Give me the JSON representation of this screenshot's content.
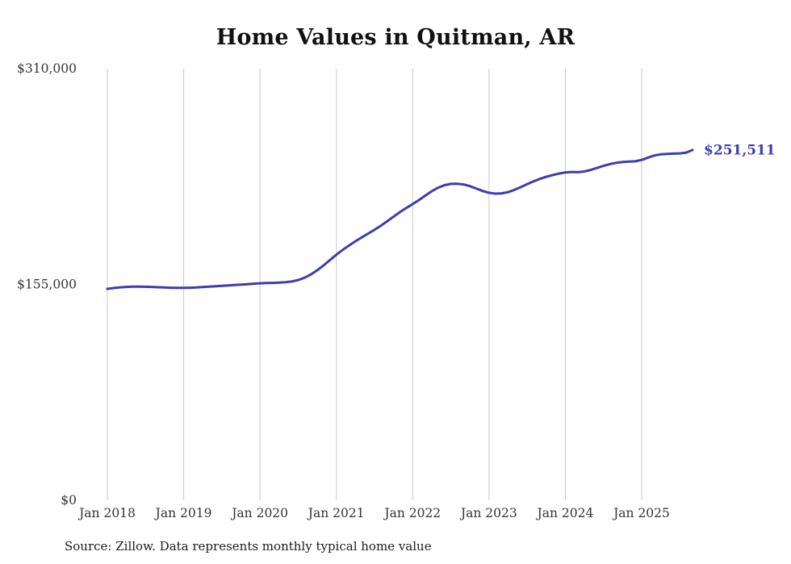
{
  "title": "Home Values in Quitman, AR",
  "source_note": "Source: Zillow. Data represents monthly typical home value",
  "colors": {
    "line": "#3e3daf",
    "grid": "#c8c8c8",
    "tick_text": "#333333",
    "title_text": "#111111"
  },
  "chart_data": {
    "type": "line",
    "title": "Home Values in Quitman, AR",
    "xlabel": "",
    "ylabel": "",
    "ylim": [
      0,
      310000
    ],
    "grid": "vertical-only",
    "legend": "none",
    "end_label": "$251,511",
    "latest_value": 251511,
    "y_ticks": [
      {
        "value": 0,
        "label": "$0"
      },
      {
        "value": 155000,
        "label": "$155,000"
      },
      {
        "value": 310000,
        "label": "$310,000"
      }
    ],
    "x_ticks": [
      "Jan 2018",
      "Jan 2019",
      "Jan 2020",
      "Jan 2021",
      "Jan 2022",
      "Jan 2023",
      "Jan 2024",
      "Jan 2025"
    ],
    "series": [
      {
        "name": "Monthly typical home value",
        "start": "2018-01",
        "end": "2025-09",
        "frequency": "monthly",
        "values": [
          151800,
          152400,
          152900,
          153200,
          153400,
          153400,
          153300,
          153200,
          153000,
          152800,
          152600,
          152500,
          152500,
          152600,
          152800,
          153100,
          153400,
          153700,
          154000,
          154300,
          154600,
          154900,
          155200,
          155500,
          155800,
          156000,
          156100,
          156300,
          156600,
          157100,
          158100,
          159800,
          162200,
          165200,
          168700,
          172500,
          176300,
          179800,
          183000,
          186000,
          188800,
          191500,
          194200,
          197200,
          200400,
          203700,
          206900,
          209900,
          212700,
          215600,
          218800,
          221900,
          224500,
          226300,
          227200,
          227300,
          226800,
          225600,
          223900,
          222100,
          220800,
          220200,
          220400,
          221300,
          222900,
          224900,
          227000,
          229000,
          230800,
          232300,
          233500,
          234600,
          235400,
          235800,
          235600,
          236100,
          237200,
          238700,
          240200,
          241400,
          242300,
          242900,
          243200,
          243400,
          244400,
          246100,
          247600,
          248400,
          248700,
          248900,
          249100,
          249700,
          251511
        ]
      }
    ]
  }
}
